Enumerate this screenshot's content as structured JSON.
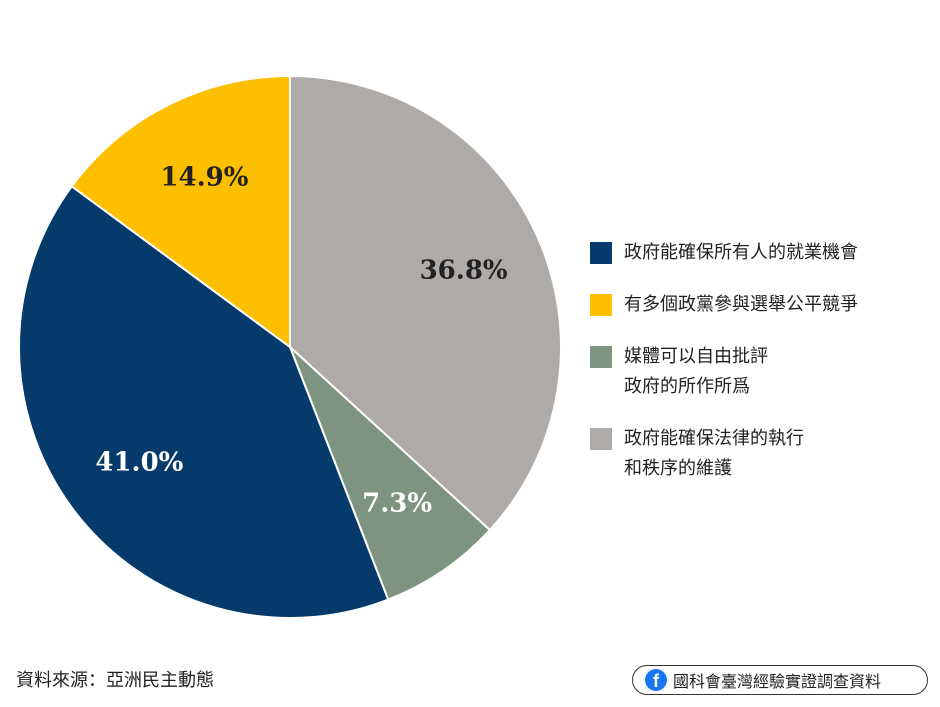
{
  "chart_data": {
    "type": "pie",
    "slices": [
      {
        "label": "政府能確保法律的執行\n和秩序的維護",
        "value": 36.8,
        "display": "36.8%",
        "color": "#aeaaa8",
        "label_color": "#222222"
      },
      {
        "label": "媒體可以自由批評\n政府的所作所爲",
        "value": 7.3,
        "display": "7.3%",
        "color": "#7d9580",
        "label_color": "#ffffff"
      },
      {
        "label": "政府能確保所有人的就業機會",
        "value": 41.0,
        "display": "41.0%",
        "color": "#053a6b",
        "label_color": "#ffffff"
      },
      {
        "label": "有多個政黨參與選舉公平競爭",
        "value": 14.9,
        "display": "14.9%",
        "color": "#fdbf00",
        "label_color": "#222222"
      }
    ],
    "legend_order": [
      2,
      3,
      1,
      0
    ],
    "legend_position": "right",
    "start_angle": "12 o'clock",
    "direction": "clockwise"
  },
  "footer": {
    "source": "資料來源：亞洲民主動態",
    "badge_icon": "facebook-icon",
    "badge_text": "國科會臺灣經驗實證調查資料"
  }
}
